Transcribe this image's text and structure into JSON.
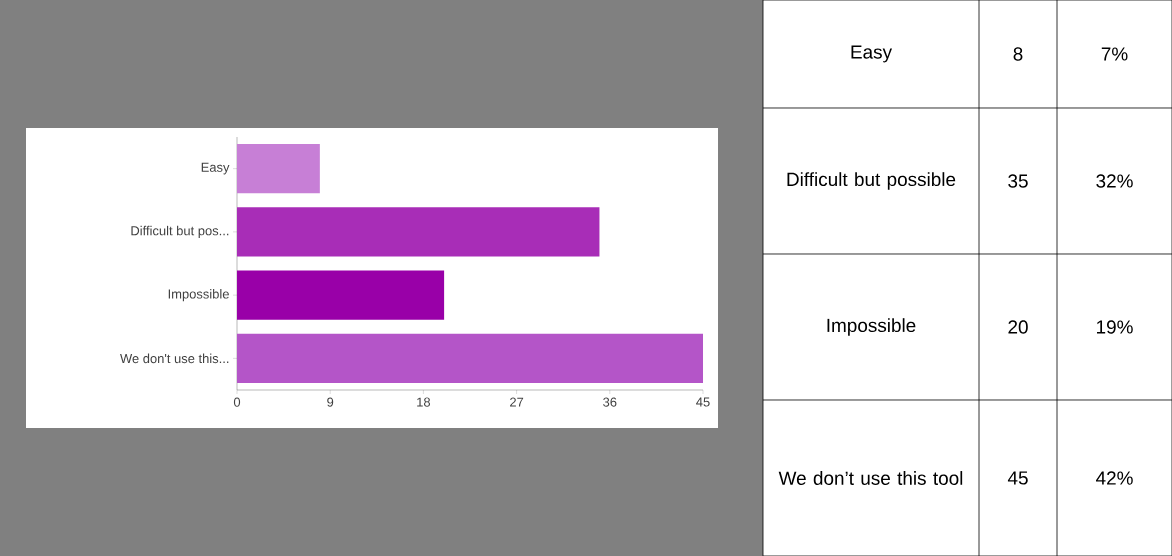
{
  "chart_data": [
    {
      "type": "bar",
      "orientation": "horizontal",
      "categories": [
        "Easy",
        "Difficult but pos...",
        "Impossible",
        "We don't use this..."
      ],
      "values": [
        8,
        35,
        20,
        45
      ],
      "colors": [
        "#c77fd6",
        "#a82db7",
        "#9900a8",
        "#b455c8"
      ],
      "xlim": [
        0,
        45
      ],
      "xticks": [
        0,
        9,
        18,
        27,
        36,
        45
      ]
    },
    {
      "type": "other",
      "annotations": [
        "Easy",
        "8",
        "7%",
        "Difficult but possible",
        "35",
        "32%",
        "Impossible",
        "20",
        "19%",
        "We don’t use this tool",
        "45",
        "42%"
      ]
    }
  ]
}
